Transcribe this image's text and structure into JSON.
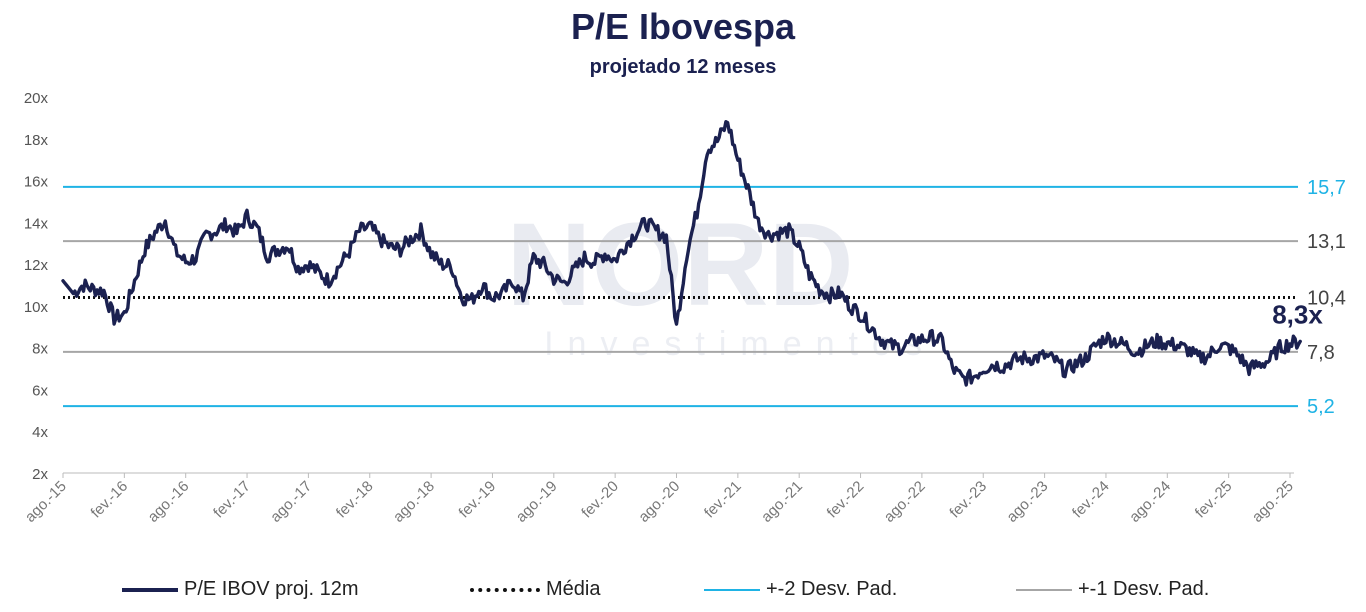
{
  "title": "P/E Ibovespa",
  "subtitle": "projetado 12 meses",
  "watermark": {
    "brand": "NORD",
    "tagline": "Investimentos"
  },
  "chart_data": {
    "type": "line",
    "title": "P/E Ibovespa",
    "subtitle": "projetado 12 meses",
    "xlabel": "",
    "ylabel": "",
    "ylim": [
      2,
      20
    ],
    "yticks": [
      "2x",
      "4x",
      "6x",
      "8x",
      "10x",
      "12x",
      "14x",
      "16x",
      "18x",
      "20x"
    ],
    "xticks": [
      "ago.-15",
      "fev.-16",
      "ago.-16",
      "fev.-17",
      "ago.-17",
      "fev.-18",
      "ago.-18",
      "fev.-19",
      "ago.-19",
      "fev.-20",
      "ago.-20",
      "fev.-21",
      "ago.-21",
      "fev.-22",
      "ago.-22",
      "fev.-23",
      "ago.-23",
      "fev.-24",
      "ago.-24",
      "fev.-25",
      "ago.-25"
    ],
    "grid": false,
    "legend_position": "bottom",
    "series": [
      {
        "name": "P/E IBOV proj. 12m",
        "color": "#1b2150",
        "points": [
          [
            "2015-08",
            11.2
          ],
          [
            "2015-09",
            10.6
          ],
          [
            "2015-10",
            11.0
          ],
          [
            "2015-11",
            10.8
          ],
          [
            "2015-12",
            10.7
          ],
          [
            "2016-01",
            9.4
          ],
          [
            "2016-02",
            9.6
          ],
          [
            "2016-03",
            11.2
          ],
          [
            "2016-04",
            12.7
          ],
          [
            "2016-05",
            13.5
          ],
          [
            "2016-06",
            14.1
          ],
          [
            "2016-07",
            12.6
          ],
          [
            "2016-08",
            12.1
          ],
          [
            "2016-09",
            12.3
          ],
          [
            "2016-10",
            13.4
          ],
          [
            "2016-11",
            13.6
          ],
          [
            "2016-12",
            13.9
          ],
          [
            "2017-01",
            13.5
          ],
          [
            "2017-02",
            14.3
          ],
          [
            "2017-03",
            13.7
          ],
          [
            "2017-04",
            12.4
          ],
          [
            "2017-05",
            12.7
          ],
          [
            "2017-06",
            12.9
          ],
          [
            "2017-07",
            11.8
          ],
          [
            "2017-08",
            12.0
          ],
          [
            "2017-09",
            11.6
          ],
          [
            "2017-10",
            11.2
          ],
          [
            "2017-11",
            11.9
          ],
          [
            "2017-12",
            12.6
          ],
          [
            "2018-01",
            13.6
          ],
          [
            "2018-02",
            13.8
          ],
          [
            "2018-03",
            13.2
          ],
          [
            "2018-04",
            12.8
          ],
          [
            "2018-05",
            12.7
          ],
          [
            "2018-06",
            13.2
          ],
          [
            "2018-07",
            13.6
          ],
          [
            "2018-08",
            12.5
          ],
          [
            "2018-09",
            12.0
          ],
          [
            "2018-10",
            11.9
          ],
          [
            "2018-11",
            10.4
          ],
          [
            "2018-12",
            10.3
          ],
          [
            "2019-01",
            11.0
          ],
          [
            "2019-02",
            10.4
          ],
          [
            "2019-03",
            10.6
          ],
          [
            "2019-04",
            11.2
          ],
          [
            "2019-05",
            10.4
          ],
          [
            "2019-06",
            12.3
          ],
          [
            "2019-07",
            12.0
          ],
          [
            "2019-08",
            11.3
          ],
          [
            "2019-09",
            11.1
          ],
          [
            "2019-10",
            11.7
          ],
          [
            "2019-11",
            12.3
          ],
          [
            "2019-12",
            12.1
          ],
          [
            "2020-01",
            12.5
          ],
          [
            "2020-02",
            12.2
          ],
          [
            "2020-03",
            12.9
          ],
          [
            "2020-04",
            13.5
          ],
          [
            "2020-05",
            14.0
          ],
          [
            "2020-06",
            13.6
          ],
          [
            "2020-07",
            13.3
          ],
          [
            "2020-08",
            9.0
          ],
          [
            "2020-09",
            12.5
          ],
          [
            "2020-10",
            14.5
          ],
          [
            "2020-11",
            17.5
          ],
          [
            "2020-12",
            17.9
          ],
          [
            "2021-01",
            18.8
          ],
          [
            "2021-02",
            17.0
          ],
          [
            "2021-03",
            15.6
          ],
          [
            "2021-04",
            14.0
          ],
          [
            "2021-05",
            13.4
          ],
          [
            "2021-06",
            13.5
          ],
          [
            "2021-07",
            13.6
          ],
          [
            "2021-08",
            12.8
          ],
          [
            "2021-09",
            11.5
          ],
          [
            "2021-10",
            10.8
          ],
          [
            "2021-11",
            10.5
          ],
          [
            "2021-12",
            10.6
          ],
          [
            "2022-01",
            10.0
          ],
          [
            "2022-02",
            9.6
          ],
          [
            "2022-03",
            9.0
          ],
          [
            "2022-04",
            8.4
          ],
          [
            "2022-05",
            8.1
          ],
          [
            "2022-06",
            8.0
          ],
          [
            "2022-07",
            8.3
          ],
          [
            "2022-08",
            8.4
          ],
          [
            "2022-09",
            8.5
          ],
          [
            "2022-10",
            8.3
          ],
          [
            "2022-11",
            7.0
          ],
          [
            "2022-12",
            6.5
          ],
          [
            "2023-01",
            6.6
          ],
          [
            "2023-02",
            7.0
          ],
          [
            "2023-03",
            7.2
          ],
          [
            "2023-04",
            7.1
          ],
          [
            "2023-05",
            7.4
          ],
          [
            "2023-06",
            7.5
          ],
          [
            "2023-07",
            7.5
          ],
          [
            "2023-08",
            7.6
          ],
          [
            "2023-09",
            7.4
          ],
          [
            "2023-10",
            6.9
          ],
          [
            "2023-11",
            7.2
          ],
          [
            "2023-12",
            7.5
          ],
          [
            "2024-01",
            8.1
          ],
          [
            "2024-02",
            8.5
          ],
          [
            "2024-03",
            8.3
          ],
          [
            "2024-04",
            8.1
          ],
          [
            "2024-05",
            7.8
          ],
          [
            "2024-06",
            8.1
          ],
          [
            "2024-07",
            8.3
          ],
          [
            "2024-08",
            8.2
          ],
          [
            "2024-09",
            8.1
          ],
          [
            "2024-10",
            7.9
          ],
          [
            "2024-11",
            7.5
          ],
          [
            "2024-12",
            7.6
          ],
          [
            "2025-01",
            8.1
          ],
          [
            "2025-02",
            8.0
          ],
          [
            "2025-03",
            7.6
          ],
          [
            "2025-04",
            7.0
          ],
          [
            "2025-05",
            7.2
          ],
          [
            "2025-06",
            7.4
          ],
          [
            "2025-07",
            8.0
          ],
          [
            "2025-08",
            8.2
          ],
          [
            "2025-09",
            8.3
          ]
        ]
      },
      {
        "name": "Média",
        "color": "#111111",
        "style": "dotted",
        "value": 10.4,
        "label": "10,4"
      },
      {
        "name": "+-2 Desv. Pad.",
        "color": "#1fb3e5",
        "style": "solid",
        "values": [
          15.7,
          5.2
        ],
        "labels": [
          "15,7",
          "5,2"
        ]
      },
      {
        "name": "+-1 Desv. Pad.",
        "color": "#a6a6a6",
        "style": "solid",
        "values": [
          13.1,
          7.8
        ],
        "labels": [
          "13,1",
          "7,8"
        ]
      }
    ],
    "annotation": {
      "text": "8,3x",
      "color": "#1b2150"
    }
  }
}
